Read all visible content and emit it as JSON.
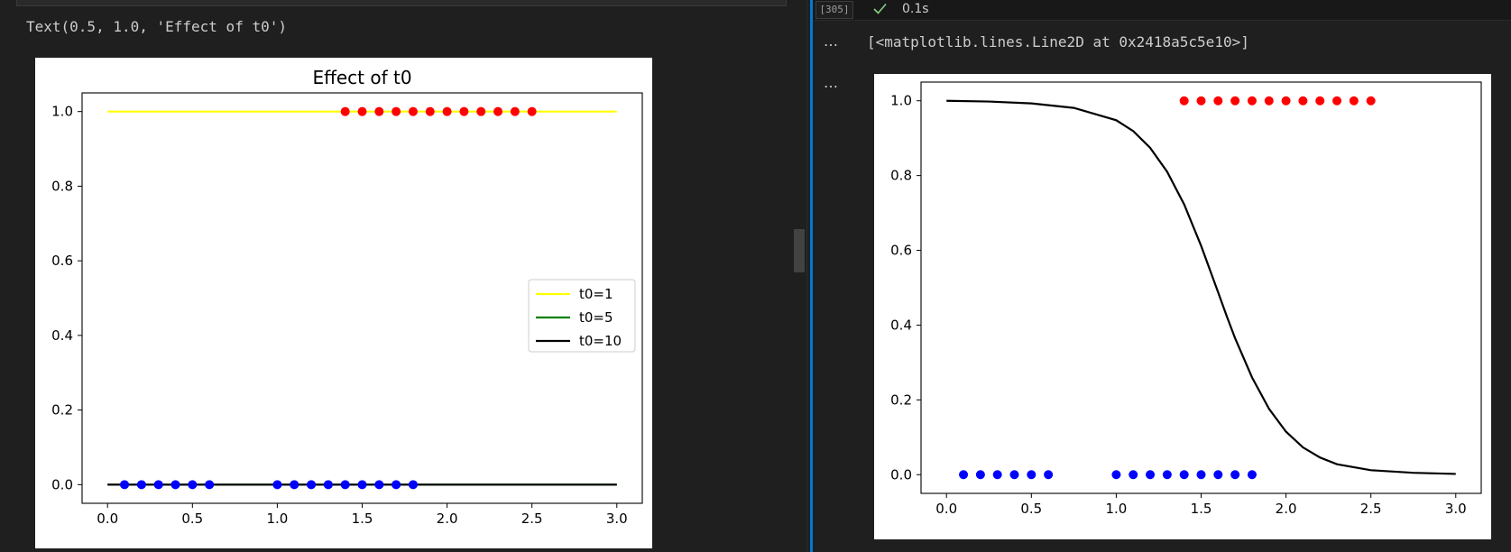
{
  "left_cell": {
    "output_text": "Text(0.5, 1.0, 'Effect of t0')"
  },
  "right_cell": {
    "exec_count": "[305]",
    "exec_time": "0.1s",
    "status_icon": "check-icon",
    "output_ellipsis": "…",
    "output_text": "[<matplotlib.lines.Line2D at 0x2418a5c5e10>]"
  },
  "colors": {
    "accent": "#0078d4",
    "status_ok": "#89d185"
  },
  "chart_data": [
    {
      "type": "line",
      "title": "Effect of t0",
      "xlabel": "",
      "ylabel": "",
      "xlim": [
        -0.15,
        3.15
      ],
      "ylim": [
        -0.05,
        1.05
      ],
      "xticks": [
        "0.0",
        "0.5",
        "1.0",
        "1.5",
        "2.0",
        "2.5",
        "3.0"
      ],
      "yticks": [
        "0.0",
        "0.2",
        "0.4",
        "0.6",
        "0.8",
        "1.0"
      ],
      "grid": false,
      "legend_position": "center-right",
      "series": [
        {
          "name": "t0=1",
          "kind": "line",
          "color": "#ffff00",
          "x": [
            0,
            3
          ],
          "y": [
            1,
            1
          ]
        },
        {
          "name": "t0=5",
          "kind": "line",
          "color": "#008000",
          "x": [
            0,
            3
          ],
          "y": [
            0,
            0
          ]
        },
        {
          "name": "t0=10",
          "kind": "line",
          "color": "#000000",
          "x": [
            0,
            3
          ],
          "y": [
            0,
            0
          ]
        },
        {
          "kind": "scatter",
          "color": "#0000ff",
          "x": [
            0.1,
            0.2,
            0.3,
            0.4,
            0.5,
            0.6,
            1.0,
            1.1,
            1.2,
            1.3,
            1.4,
            1.5,
            1.6,
            1.7,
            1.8
          ],
          "y": [
            0,
            0,
            0,
            0,
            0,
            0,
            0,
            0,
            0,
            0,
            0,
            0,
            0,
            0,
            0
          ]
        },
        {
          "kind": "scatter",
          "color": "#ff0000",
          "x": [
            1.4,
            1.5,
            1.6,
            1.7,
            1.8,
            1.9,
            2.0,
            2.1,
            2.2,
            2.3,
            2.4,
            2.5
          ],
          "y": [
            1,
            1,
            1,
            1,
            1,
            1,
            1,
            1,
            1,
            1,
            1,
            1
          ]
        }
      ]
    },
    {
      "type": "line",
      "title": "",
      "xlabel": "",
      "ylabel": "",
      "xlim": [
        -0.15,
        3.15
      ],
      "ylim": [
        -0.05,
        1.05
      ],
      "xticks": [
        "0.0",
        "0.5",
        "1.0",
        "1.5",
        "2.0",
        "2.5",
        "3.0"
      ],
      "yticks": [
        "0.0",
        "0.2",
        "0.4",
        "0.6",
        "0.8",
        "1.0"
      ],
      "grid": false,
      "series": [
        {
          "kind": "curve",
          "color": "#000000",
          "x": [
            0.0,
            0.25,
            0.5,
            0.75,
            1.0,
            1.1,
            1.2,
            1.3,
            1.4,
            1.5,
            1.6,
            1.65,
            1.7,
            1.8,
            1.9,
            2.0,
            2.1,
            2.2,
            2.3,
            2.5,
            2.75,
            3.0
          ],
          "y": [
            1.0,
            0.998,
            0.993,
            0.981,
            0.948,
            0.919,
            0.874,
            0.81,
            0.723,
            0.612,
            0.488,
            0.425,
            0.365,
            0.26,
            0.176,
            0.115,
            0.073,
            0.046,
            0.028,
            0.012,
            0.005,
            0.002
          ]
        },
        {
          "kind": "scatter",
          "color": "#0000ff",
          "x": [
            0.1,
            0.2,
            0.3,
            0.4,
            0.5,
            0.6,
            1.0,
            1.1,
            1.2,
            1.3,
            1.4,
            1.5,
            1.6,
            1.7,
            1.8
          ],
          "y": [
            0,
            0,
            0,
            0,
            0,
            0,
            0,
            0,
            0,
            0,
            0,
            0,
            0,
            0,
            0
          ]
        },
        {
          "kind": "scatter",
          "color": "#ff0000",
          "x": [
            1.4,
            1.5,
            1.6,
            1.7,
            1.8,
            1.9,
            2.0,
            2.1,
            2.2,
            2.3,
            2.4,
            2.5
          ],
          "y": [
            1,
            1,
            1,
            1,
            1,
            1,
            1,
            1,
            1,
            1,
            1,
            1
          ]
        }
      ]
    }
  ]
}
